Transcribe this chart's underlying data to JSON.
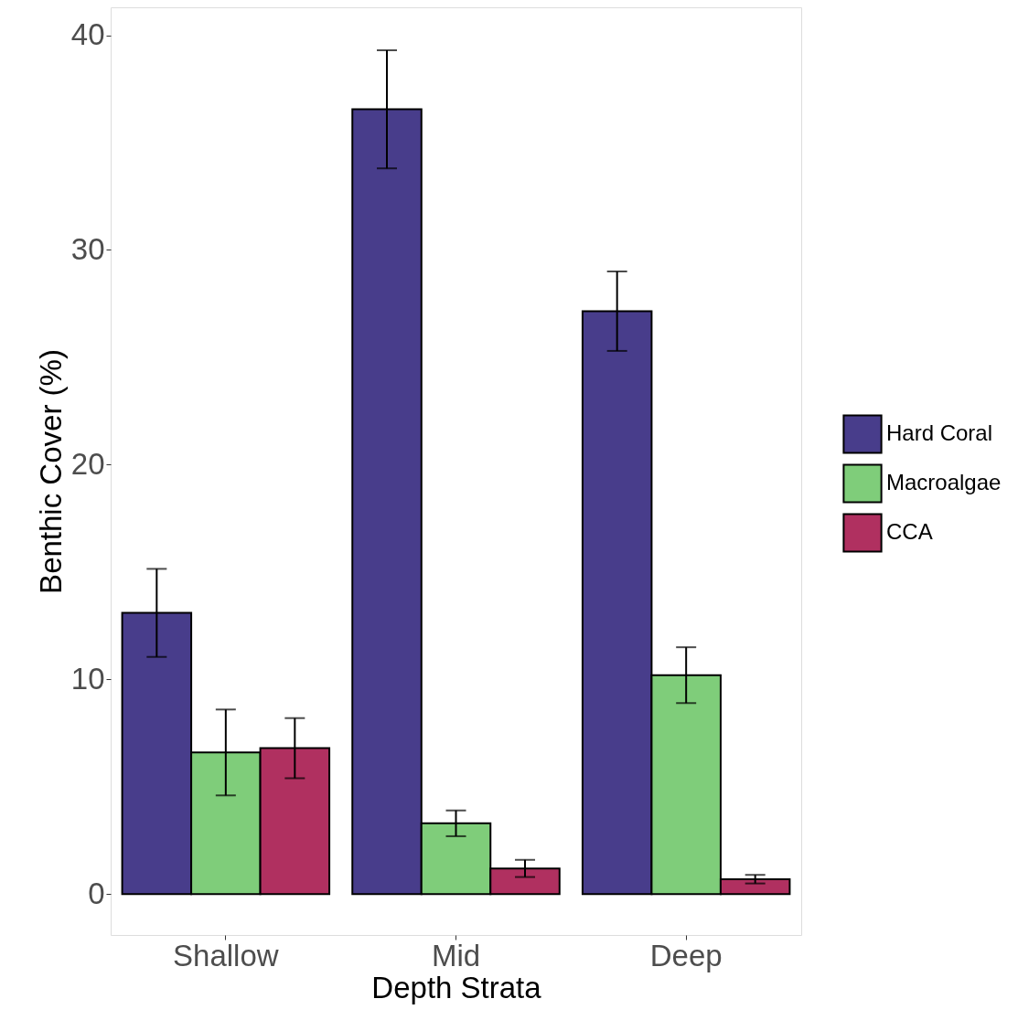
{
  "chart_data": {
    "type": "bar",
    "xlabel": "Depth Strata",
    "ylabel": "Benthic Cover (%)",
    "categories": [
      "Shallow",
      "Mid",
      "Deep"
    ],
    "series": [
      {
        "name": "Hard Coral",
        "color": "#483d8b",
        "values": [
          13.1,
          36.55,
          27.15
        ],
        "errors": [
          2.05,
          2.75,
          1.85
        ]
      },
      {
        "name": "Macroalgae",
        "color": "#7fcd7a",
        "values": [
          6.6,
          3.3,
          10.2
        ],
        "errors": [
          2.0,
          0.6,
          1.3
        ]
      },
      {
        "name": "CCA",
        "color": "#b03060",
        "values": [
          6.8,
          1.2,
          0.7
        ],
        "errors": [
          1.4,
          0.4,
          0.2
        ]
      }
    ],
    "ylim": [
      -1.9,
      41.3
    ],
    "yticks": [
      0,
      10,
      20,
      30,
      40
    ],
    "grid": false,
    "legend": "right"
  }
}
